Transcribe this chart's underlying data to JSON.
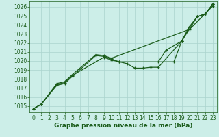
{
  "xlabel": "Graphe pression niveau de la mer (hPa)",
  "background_color": "#cceee8",
  "grid_color": "#aad4ce",
  "line_color": "#1a5c1a",
  "ylim": [
    1014.3,
    1026.6
  ],
  "xlim": [
    -0.5,
    23.5
  ],
  "yticks": [
    1015,
    1016,
    1017,
    1018,
    1019,
    1020,
    1021,
    1022,
    1023,
    1024,
    1025,
    1026
  ],
  "xticks": [
    0,
    1,
    2,
    3,
    4,
    5,
    6,
    7,
    8,
    9,
    10,
    11,
    12,
    13,
    14,
    15,
    16,
    17,
    18,
    19,
    20,
    21,
    22,
    23
  ],
  "s1_x": [
    0,
    1,
    3,
    4,
    5,
    8,
    9,
    10,
    11,
    12,
    13,
    14,
    15,
    16,
    19,
    21,
    22,
    23
  ],
  "s1_y": [
    1014.7,
    1015.2,
    1017.3,
    1017.5,
    1018.3,
    1020.6,
    1020.5,
    1020.2,
    1019.9,
    1019.7,
    1019.2,
    1019.2,
    1019.3,
    1019.3,
    1022.2,
    1024.9,
    1025.2,
    1026.3
  ],
  "s2_x": [
    0,
    1,
    3,
    4,
    5,
    9,
    10,
    11,
    18,
    19,
    20,
    21,
    22,
    23
  ],
  "s2_y": [
    1014.7,
    1015.2,
    1017.4,
    1017.6,
    1018.4,
    1020.4,
    1020.1,
    1019.9,
    1019.9,
    1022.2,
    1023.8,
    1024.9,
    1025.2,
    1026.3
  ],
  "s3_x": [
    0,
    1,
    3,
    4,
    5,
    8,
    9,
    10,
    20,
    23
  ],
  "s3_y": [
    1014.7,
    1015.2,
    1017.5,
    1017.7,
    1018.5,
    1020.7,
    1020.6,
    1020.3,
    1023.5,
    1026.1
  ],
  "s4_x": [
    16,
    17,
    19,
    20,
    21,
    22,
    23
  ],
  "s4_y": [
    1019.9,
    1021.2,
    1022.2,
    1023.8,
    1024.9,
    1025.2,
    1026.3
  ],
  "marker_size": 3.5,
  "linewidth": 0.9,
  "font_size_tick": 5.5,
  "font_size_xlabel": 6.5
}
